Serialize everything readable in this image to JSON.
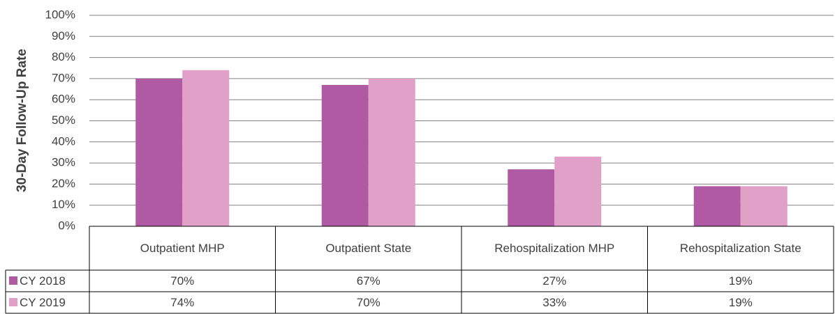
{
  "chart_data": {
    "type": "bar",
    "y_label": "30-Day Follow-Up Rate",
    "categories": [
      "Outpatient MHP",
      "Outpatient State",
      "Rehospitalization MHP",
      "Rehospitalization State"
    ],
    "series": [
      {
        "name": "CY 2018",
        "color": "#b05aa4",
        "values": [
          70,
          67,
          27,
          19
        ],
        "value_labels": [
          "70%",
          "67%",
          "27%",
          "19%"
        ]
      },
      {
        "name": "CY 2019",
        "color": "#e0a0c8",
        "values": [
          74,
          70,
          33,
          19
        ],
        "value_labels": [
          "74%",
          "70%",
          "33%",
          "19%"
        ]
      }
    ],
    "ylim": [
      0,
      100
    ],
    "yticks": [
      {
        "value": 0,
        "label": "0%"
      },
      {
        "value": 10,
        "label": "10%"
      },
      {
        "value": 20,
        "label": "20%"
      },
      {
        "value": 30,
        "label": "30%"
      },
      {
        "value": 40,
        "label": "40%"
      },
      {
        "value": 50,
        "label": "50%"
      },
      {
        "value": 60,
        "label": "60%"
      },
      {
        "value": 70,
        "label": "70%"
      },
      {
        "value": 80,
        "label": "80%"
      },
      {
        "value": 90,
        "label": "90%"
      },
      {
        "value": 100,
        "label": "100%"
      }
    ],
    "grid": true,
    "data_table": true
  }
}
